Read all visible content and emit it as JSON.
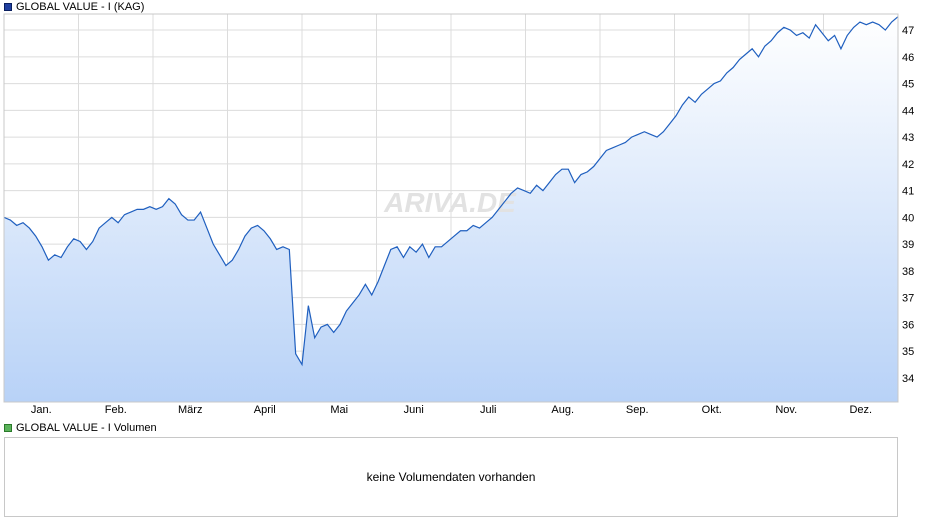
{
  "legend": {
    "price_label": "GLOBAL VALUE - I (KAG)",
    "price_color": "#1f3f9f",
    "volume_label": "GLOBAL VALUE - I Volumen",
    "volume_color": "#5bb35b"
  },
  "watermark": "ARIVA.DE",
  "volume_panel": {
    "message": "keine Volumendaten vorhanden"
  },
  "chart_data": {
    "type": "area",
    "title": "",
    "xlabel": "",
    "ylabel": "",
    "x_tick_labels": [
      "Jan.",
      "Feb.",
      "März",
      "April",
      "Mai",
      "Juni",
      "Juli",
      "Aug.",
      "Sep.",
      "Okt.",
      "Nov.",
      "Dez."
    ],
    "y_ticks": [
      34,
      35,
      36,
      37,
      38,
      39,
      40,
      41,
      42,
      43,
      44,
      45,
      46,
      47
    ],
    "ylim": [
      33.1,
      47.6
    ],
    "y_axis_side": "right",
    "grid": true,
    "line_color": "#1f5fbf",
    "fill_top_color": "#ffffff",
    "fill_bottom_color": "#b8d2f7",
    "series": [
      {
        "name": "GLOBAL VALUE - I (KAG)",
        "values": [
          40.0,
          39.9,
          39.7,
          39.8,
          39.6,
          39.3,
          38.9,
          38.4,
          38.6,
          38.5,
          38.9,
          39.2,
          39.1,
          38.8,
          39.1,
          39.6,
          39.8,
          40.0,
          39.8,
          40.1,
          40.2,
          40.3,
          40.3,
          40.4,
          40.3,
          40.4,
          40.7,
          40.5,
          40.1,
          39.9,
          39.9,
          40.2,
          39.6,
          39.0,
          38.6,
          38.2,
          38.4,
          38.8,
          39.3,
          39.6,
          39.7,
          39.5,
          39.2,
          38.8,
          38.9,
          38.8,
          34.9,
          34.5,
          36.7,
          35.5,
          35.9,
          36.0,
          35.7,
          36.0,
          36.5,
          36.8,
          37.1,
          37.5,
          37.1,
          37.6,
          38.2,
          38.8,
          38.9,
          38.5,
          38.9,
          38.7,
          39.0,
          38.5,
          38.9,
          38.9,
          39.1,
          39.3,
          39.5,
          39.5,
          39.7,
          39.6,
          39.8,
          40.0,
          40.3,
          40.6,
          40.9,
          41.1,
          41.0,
          40.9,
          41.2,
          41.0,
          41.3,
          41.6,
          41.8,
          41.8,
          41.3,
          41.6,
          41.7,
          41.9,
          42.2,
          42.5,
          42.6,
          42.7,
          42.8,
          43.0,
          43.1,
          43.2,
          43.1,
          43.0,
          43.2,
          43.5,
          43.8,
          44.2,
          44.5,
          44.3,
          44.6,
          44.8,
          45.0,
          45.1,
          45.4,
          45.6,
          45.9,
          46.1,
          46.3,
          46.0,
          46.4,
          46.6,
          46.9,
          47.1,
          47.0,
          46.8,
          46.9,
          46.7,
          47.2,
          46.9,
          46.6,
          46.8,
          46.3,
          46.8,
          47.1,
          47.3,
          47.2,
          47.3,
          47.2,
          47.0,
          47.3,
          47.5
        ]
      }
    ]
  }
}
